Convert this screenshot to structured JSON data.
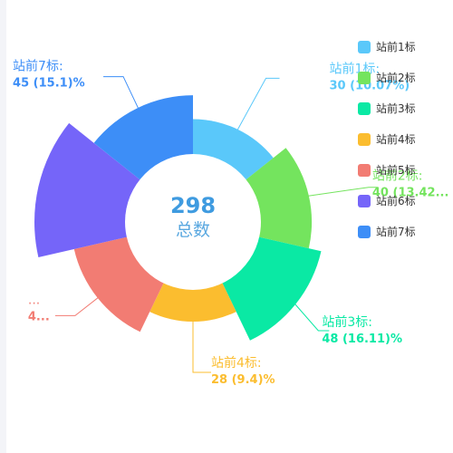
{
  "chart_data": {
    "type": "pie",
    "rose_type": "radius",
    "total": "298",
    "center_label": "总数",
    "legend_position": "right",
    "categories": [
      "站前1标",
      "站前2标",
      "站前3标",
      "站前4标",
      "站前5标",
      "站前6标",
      "站前7标"
    ],
    "values": [
      30,
      40,
      48,
      28,
      42,
      65,
      45
    ],
    "percents": [
      "10.07%",
      "13.42%",
      "16.11%",
      "9.4%",
      "14.09%",
      "21.81%",
      "15.1%"
    ],
    "colors": [
      "#5ac8fa",
      "#74e45e",
      "#0ae9a4",
      "#fbbd2f",
      "#f27c73",
      "#7565f9",
      "#3d8ef7"
    ],
    "labels": [
      {
        "name": "站前1标:",
        "value": "30 (10.07%)"
      },
      {
        "name": "站前2标:",
        "value": "40 (13.42..."
      },
      {
        "name": "站前3标:",
        "value": "48 (16.11)%"
      },
      {
        "name": "站前4标:",
        "value": "28 (9.4)%"
      },
      {
        "name": "...",
        "value": "4..."
      },
      {
        "name": "",
        "value": ""
      },
      {
        "name": "站前7标:",
        "value": "45 (15.1)%"
      }
    ]
  }
}
